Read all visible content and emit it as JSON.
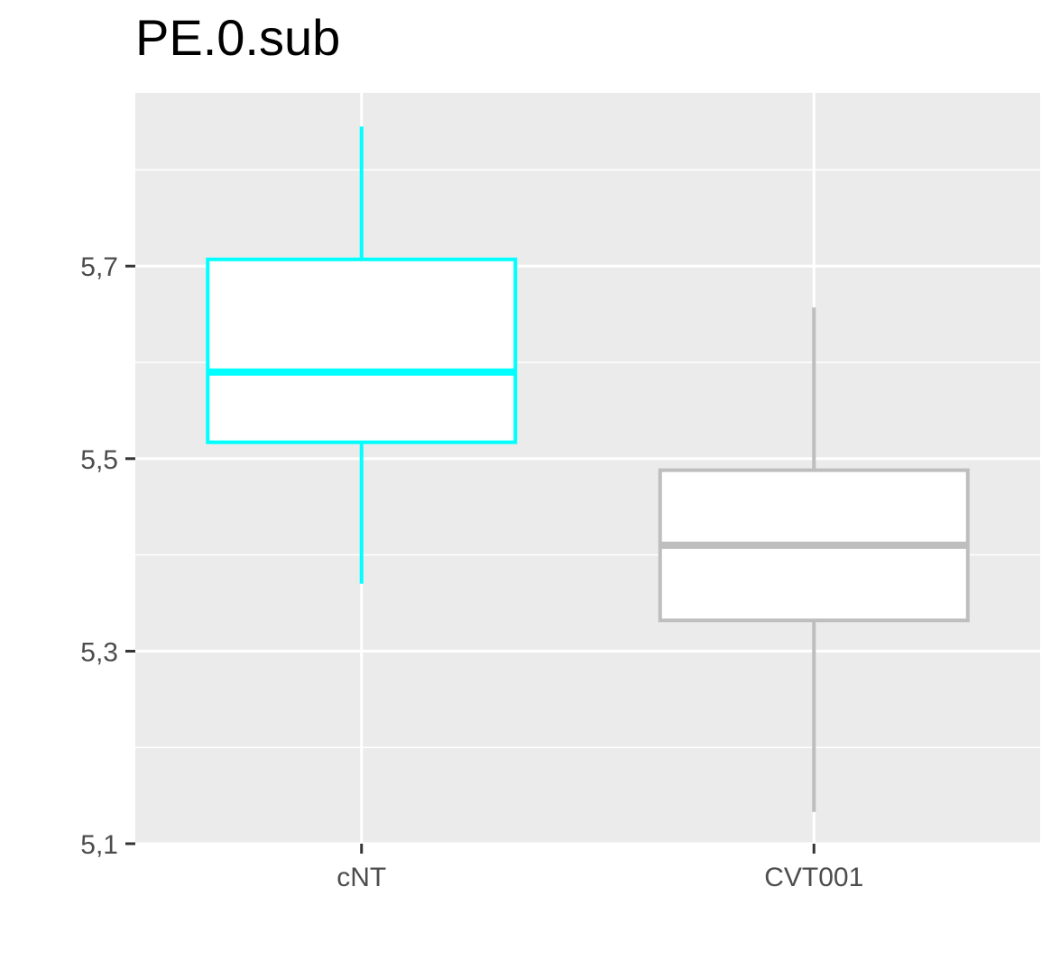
{
  "chart_data": {
    "type": "boxplot",
    "title": "PE.0.sub",
    "xlabel": "",
    "ylabel": "",
    "categories": [
      "cNT",
      "CVT001"
    ],
    "ylim": [
      5.1,
      5.88
    ],
    "y_ticks": [
      5.1,
      5.3,
      5.5,
      5.7
    ],
    "y_tick_labels": [
      "5,1",
      "5,3",
      "5,5",
      "5,7"
    ],
    "y_minor_gridlines": [
      5.2,
      5.4,
      5.6,
      5.8
    ],
    "grid": true,
    "boxes": [
      {
        "category": "cNT",
        "whisker_low": 5.37,
        "q1": 5.517,
        "median": 5.59,
        "q3": 5.707,
        "whisker_high": 5.845,
        "color": "#00FFFF"
      },
      {
        "category": "CVT001",
        "whisker_low": 5.133,
        "q1": 5.332,
        "median": 5.41,
        "q3": 5.488,
        "whisker_high": 5.657,
        "color": "#BEBEBE"
      }
    ],
    "panel_background": "#EBEBEB",
    "gridline_color": "#FFFFFF",
    "axis_text_color": "#4D4D4D"
  }
}
